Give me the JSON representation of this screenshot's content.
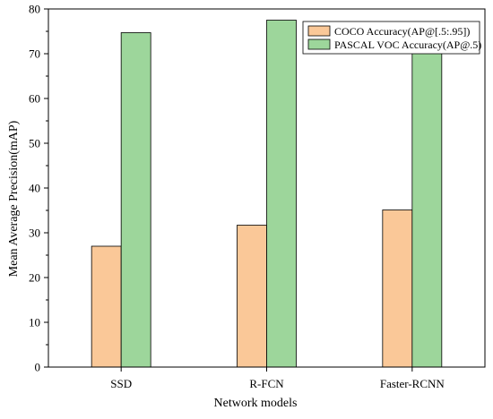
{
  "chart_data": {
    "type": "bar",
    "categories": [
      "SSD",
      "R-FCN",
      "Faster-RCNN"
    ],
    "series": [
      {
        "name": "COCO Accuracy(AP@[.5:.95])",
        "values": [
          27.0,
          31.7,
          35.1
        ],
        "color": "#FAC898"
      },
      {
        "name": "PASCAL VOC Accuracy(AP@.5)",
        "values": [
          74.7,
          77.5,
          70.5
        ],
        "color": "#9DD69B"
      }
    ],
    "xlabel": "Network models",
    "ylabel": "Mean Average Precision(mAP)",
    "ylim": [
      0,
      80
    ],
    "yticks": [
      0,
      10,
      20,
      30,
      40,
      50,
      60,
      70,
      80
    ],
    "grid": false,
    "legend_position": "top-right"
  }
}
